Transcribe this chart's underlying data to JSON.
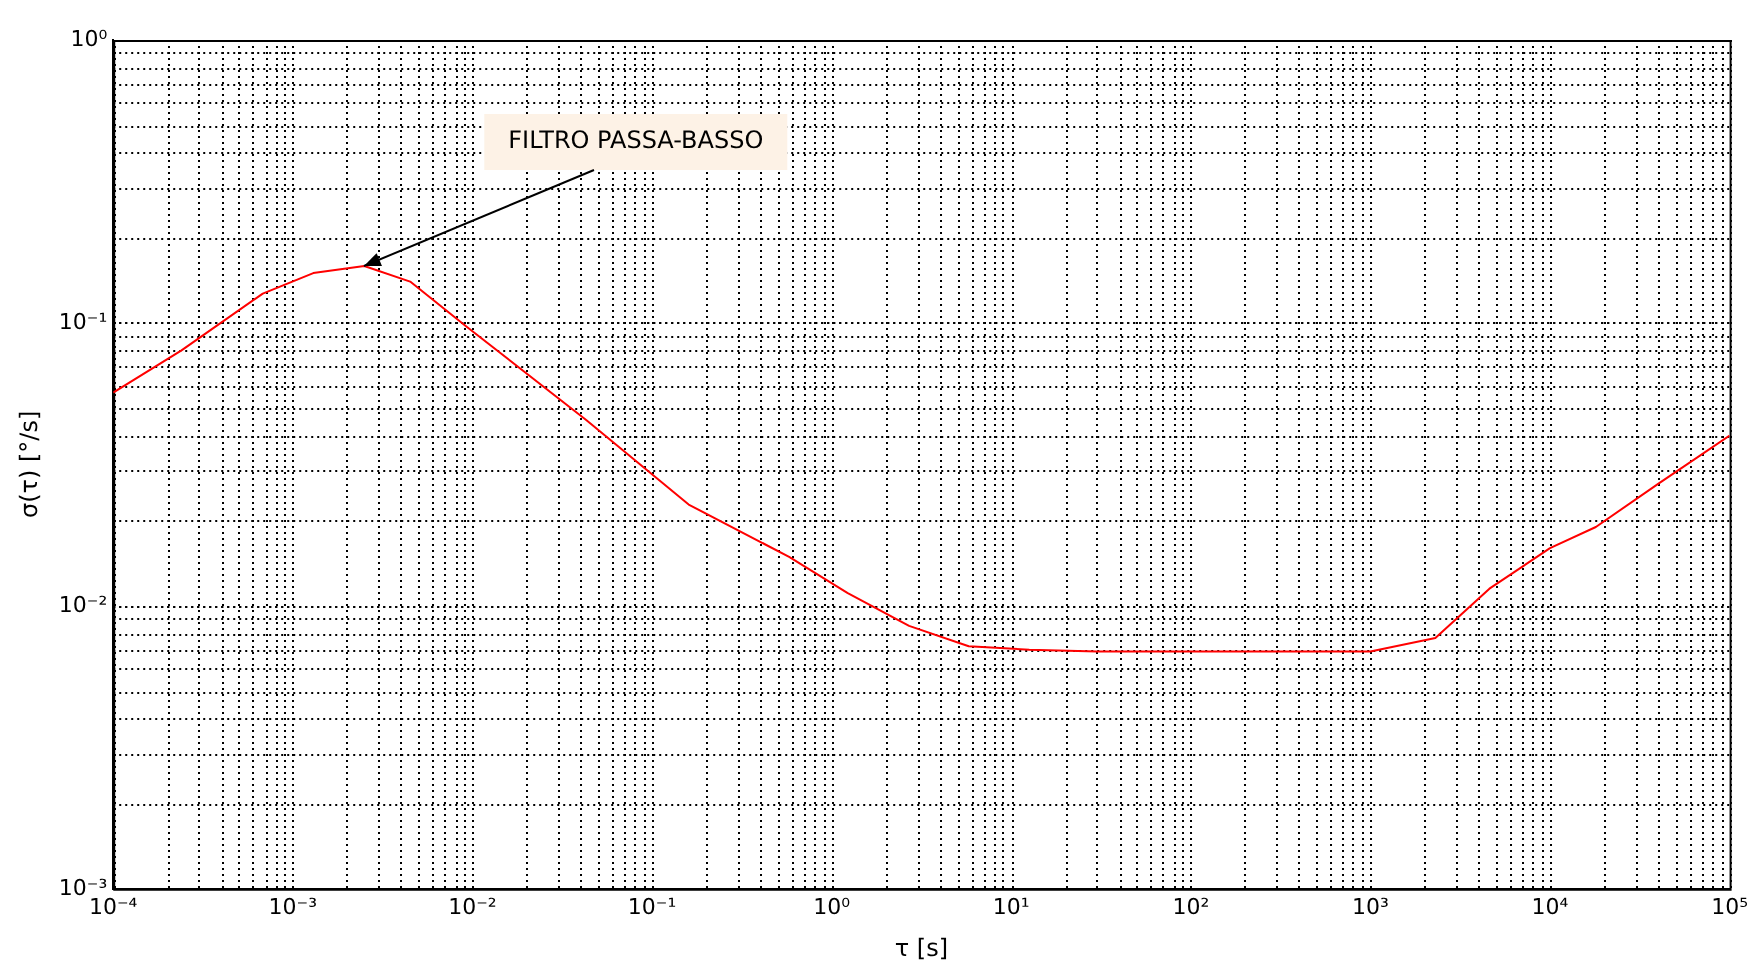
{
  "chart_data": {
    "type": "line",
    "xlabel": "τ [s]",
    "ylabel": "σ(τ) [°/s]",
    "log": "xy",
    "grid": true,
    "legend": false,
    "marker": "none",
    "line_style": "solid",
    "xlim": [
      0.0001,
      100000
    ],
    "ylim": [
      0.001,
      1
    ],
    "xticks": [
      {
        "value": 0.0001,
        "label": "10⁻⁴"
      },
      {
        "value": 0.001,
        "label": "10⁻³"
      },
      {
        "value": 0.01,
        "label": "10⁻²"
      },
      {
        "value": 0.1,
        "label": "10⁻¹"
      },
      {
        "value": 1,
        "label": "10⁰"
      },
      {
        "value": 10,
        "label": "10¹"
      },
      {
        "value": 100,
        "label": "10²"
      },
      {
        "value": 1000,
        "label": "10³"
      },
      {
        "value": 10000,
        "label": "10⁴"
      },
      {
        "value": 100000,
        "label": "10⁵"
      }
    ],
    "yticks": [
      {
        "value": 0.001,
        "label": "10⁻³"
      },
      {
        "value": 0.01,
        "label": "10⁻²"
      },
      {
        "value": 0.1,
        "label": "10⁻¹"
      },
      {
        "value": 1,
        "label": "10⁰"
      }
    ],
    "annotations": [
      {
        "text": "FILTRO PASSA-BASSO",
        "x": 0.0025,
        "y": 0.159
      }
    ],
    "series": [
      {
        "color": "#ff0000",
        "x": [
          0.0001,
          0.00024,
          0.00068,
          0.0013,
          0.0025,
          0.0045,
          0.0091,
          0.043,
          0.16,
          0.58,
          1.23,
          2.7,
          5.8,
          12.6,
          30,
          100,
          300,
          1000,
          2300,
          4600,
          10000,
          18000,
          40000,
          100000
        ],
        "values": [
          0.0567,
          0.08,
          0.127,
          0.15,
          0.159,
          0.14,
          0.098,
          0.0454,
          0.0228,
          0.0149,
          0.0111,
          0.0085,
          0.0072,
          0.007,
          0.0069,
          0.0069,
          0.0069,
          0.0069,
          0.0077,
          0.0115,
          0.016,
          0.019,
          0.027,
          0.04
        ]
      }
    ]
  }
}
